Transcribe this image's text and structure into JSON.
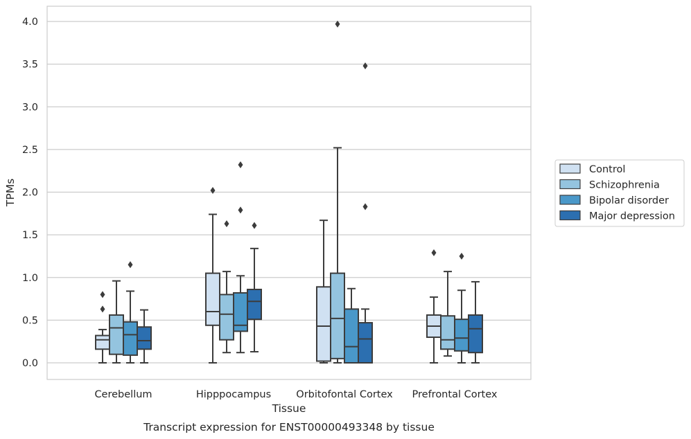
{
  "chart_data": {
    "type": "box",
    "title": "",
    "caption": "Transcript expression for ENST00000493348 by tissue",
    "xlabel": "Tissue",
    "ylabel": "TPMs",
    "ylim": [
      -0.19,
      4.18
    ],
    "yticks": [
      "0.0",
      "0.5",
      "1.0",
      "1.5",
      "2.0",
      "2.5",
      "3.0",
      "3.5",
      "4.0"
    ],
    "categories": [
      "Cerebellum",
      "Hipppocampus",
      "Orbitofontal Cortex",
      "Prefrontal Cortex"
    ],
    "grid": "horizontal",
    "legend_position": "right",
    "series": [
      {
        "name": "Control",
        "color": "#d0e1f2",
        "boxes": [
          {
            "whislo": 0.0,
            "q1": 0.16,
            "med": 0.27,
            "q3": 0.32,
            "whishi": 0.39,
            "fliers": [
              0.63,
              0.8
            ]
          },
          {
            "whislo": 0.0,
            "q1": 0.44,
            "med": 0.6,
            "q3": 1.05,
            "whishi": 1.74,
            "fliers": [
              2.02
            ]
          },
          {
            "whislo": 0.0,
            "q1": 0.02,
            "med": 0.43,
            "q3": 0.89,
            "whishi": 1.67,
            "fliers": []
          },
          {
            "whislo": 0.0,
            "q1": 0.3,
            "med": 0.43,
            "q3": 0.56,
            "whishi": 0.77,
            "fliers": [
              1.29
            ]
          }
        ]
      },
      {
        "name": "Schizophrenia",
        "color": "#94c4df",
        "boxes": [
          {
            "whislo": 0.0,
            "q1": 0.1,
            "med": 0.41,
            "q3": 0.56,
            "whishi": 0.96,
            "fliers": []
          },
          {
            "whislo": 0.12,
            "q1": 0.27,
            "med": 0.57,
            "q3": 0.8,
            "whishi": 1.07,
            "fliers": [
              1.63
            ]
          },
          {
            "whislo": 0.0,
            "q1": 0.05,
            "med": 0.52,
            "q3": 1.05,
            "whishi": 2.52,
            "fliers": [
              3.97
            ]
          },
          {
            "whislo": 0.08,
            "q1": 0.16,
            "med": 0.27,
            "q3": 0.55,
            "whishi": 1.07,
            "fliers": []
          }
        ]
      },
      {
        "name": "Bipolar disorder",
        "color": "#4a98c9",
        "boxes": [
          {
            "whislo": 0.0,
            "q1": 0.09,
            "med": 0.33,
            "q3": 0.48,
            "whishi": 0.84,
            "fliers": [
              1.15
            ]
          },
          {
            "whislo": 0.12,
            "q1": 0.37,
            "med": 0.44,
            "q3": 0.82,
            "whishi": 1.02,
            "fliers": [
              1.79,
              2.32
            ]
          },
          {
            "whislo": 0.0,
            "q1": 0.0,
            "med": 0.19,
            "q3": 0.63,
            "whishi": 0.87,
            "fliers": []
          },
          {
            "whislo": 0.0,
            "q1": 0.14,
            "med": 0.29,
            "q3": 0.51,
            "whishi": 0.85,
            "fliers": [
              1.25
            ]
          }
        ]
      },
      {
        "name": "Major depression",
        "color": "#2c6fb0",
        "boxes": [
          {
            "whislo": 0.0,
            "q1": 0.16,
            "med": 0.26,
            "q3": 0.42,
            "whishi": 0.62,
            "fliers": []
          },
          {
            "whislo": 0.13,
            "q1": 0.51,
            "med": 0.72,
            "q3": 0.86,
            "whishi": 1.34,
            "fliers": [
              1.61
            ]
          },
          {
            "whislo": 0.0,
            "q1": 0.0,
            "med": 0.28,
            "q3": 0.47,
            "whishi": 0.63,
            "fliers": [
              1.83,
              3.48
            ]
          },
          {
            "whislo": 0.0,
            "q1": 0.12,
            "med": 0.4,
            "q3": 0.56,
            "whishi": 0.95,
            "fliers": []
          }
        ]
      }
    ]
  }
}
